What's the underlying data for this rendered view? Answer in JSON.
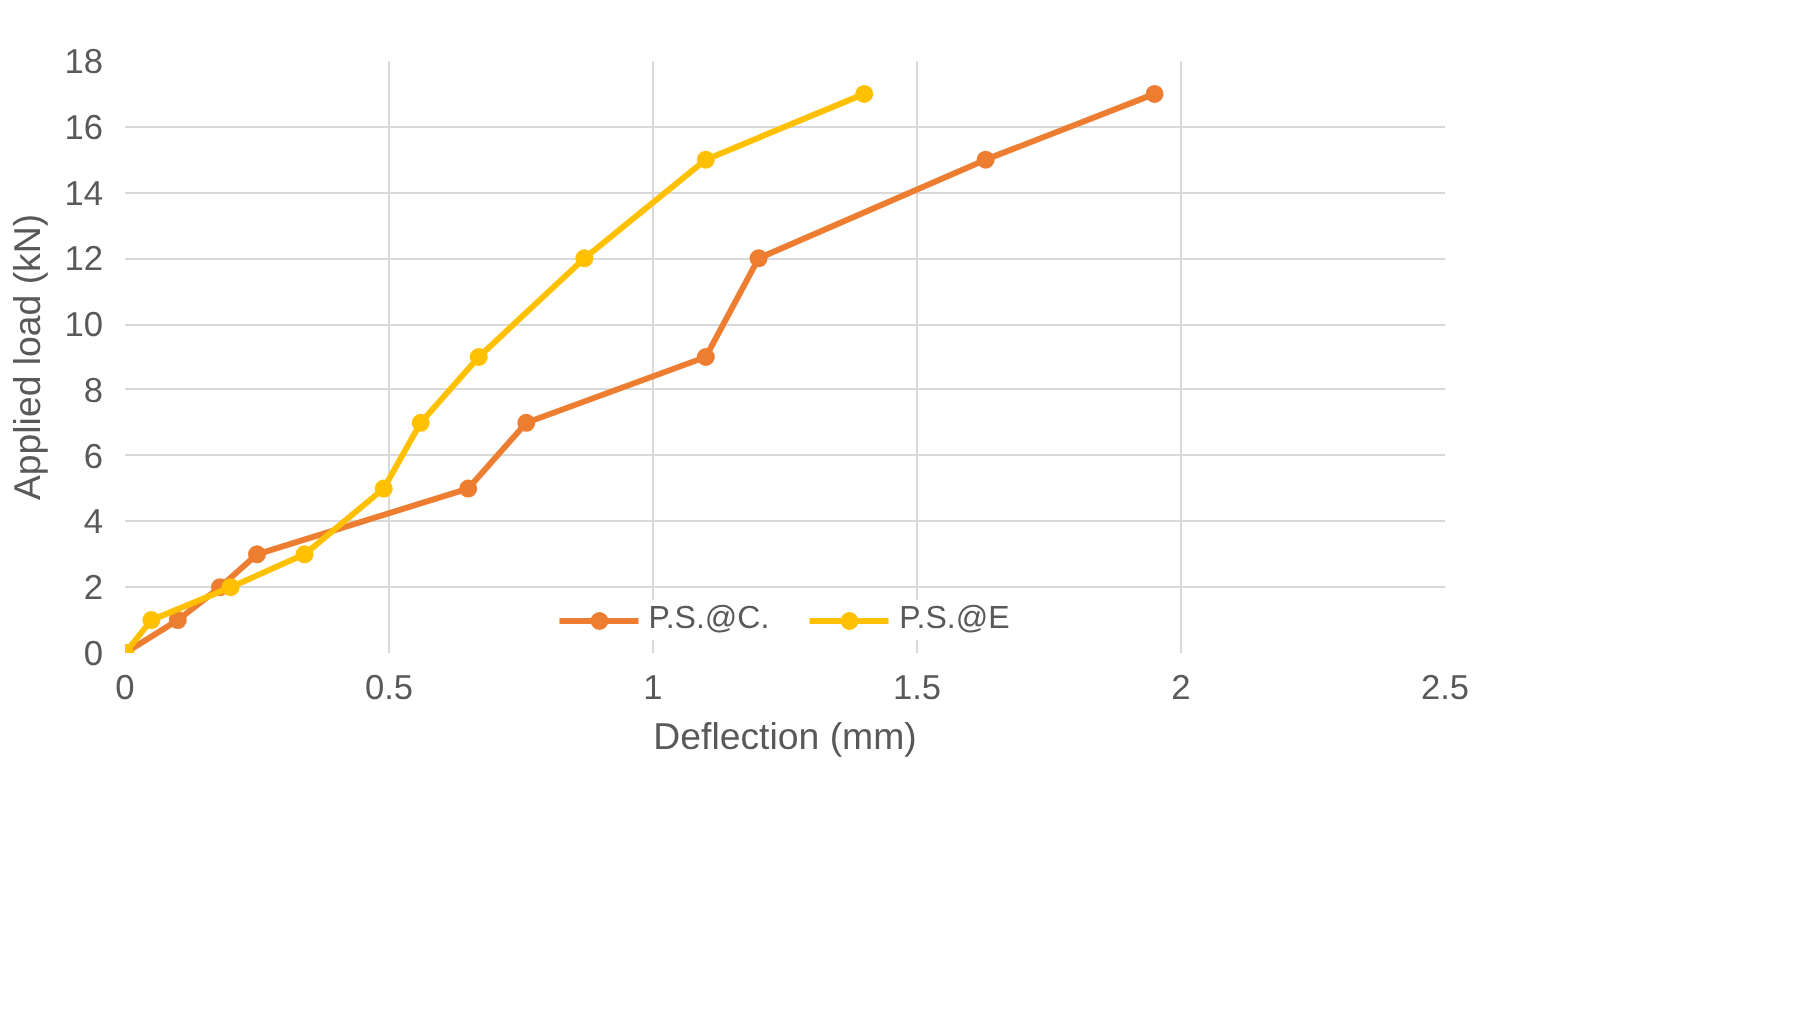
{
  "chart_data": {
    "type": "line",
    "xlabel": "Deflection (mm)",
    "ylabel": "Applied load (kN)",
    "xlim": [
      0,
      2.5
    ],
    "xticks": [
      0,
      0.5,
      1,
      1.5,
      2,
      2.5
    ],
    "ylim": [
      0,
      18
    ],
    "yticks": [
      0,
      2,
      4,
      6,
      8,
      10,
      12,
      14,
      16,
      18
    ],
    "grid": true,
    "legend": "bottom",
    "marker": "circle",
    "line_style": "solid",
    "series": [
      {
        "name": "P.S.@C.",
        "color": "#ed7d31",
        "x": [
          0,
          0.1,
          0.18,
          0.25,
          0.65,
          0.76,
          1.1,
          1.2,
          1.63,
          1.95
        ],
        "values": [
          0,
          1,
          2,
          3,
          5,
          7,
          9,
          12,
          15,
          17
        ]
      },
      {
        "name": "P.S.@E",
        "color": "#ffc000",
        "x": [
          0,
          0.05,
          0.2,
          0.34,
          0.49,
          0.56,
          0.67,
          0.87,
          1.1,
          1.4
        ],
        "values": [
          0,
          1,
          2,
          3,
          5,
          7,
          9,
          12,
          15,
          17
        ]
      }
    ]
  }
}
